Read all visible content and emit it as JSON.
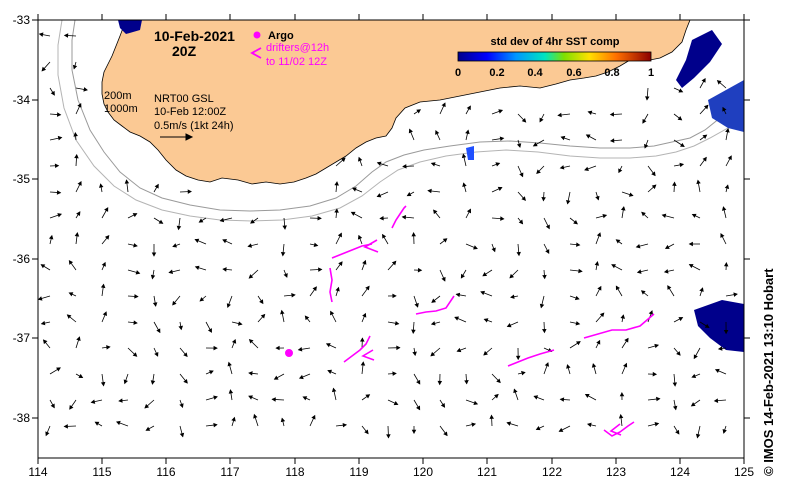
{
  "header": {
    "date": "10-Feb-2021",
    "hour": "20Z",
    "argo_label": "Argo",
    "drifters_line1": "drifters@12h",
    "drifters_line2": "to 11/02 12Z",
    "depth_200": "200m",
    "depth_1000": "1000m",
    "product": "NRT00 GSL",
    "product_time": "10-Feb 12:00Z",
    "scale_label": "0.5m/s (1kt 24h)"
  },
  "colorbar": {
    "title": "std dev of 4hr SST comp",
    "ticks": [
      "0",
      "0.2",
      "0.4",
      "0.6",
      "0.8",
      "1"
    ]
  },
  "axes": {
    "x_ticks": [
      "114",
      "115",
      "116",
      "117",
      "118",
      "119",
      "120",
      "121",
      "122",
      "123",
      "124",
      "125"
    ],
    "y_ticks": [
      "-33",
      "-34",
      "-35",
      "-36",
      "-37",
      "-38"
    ]
  },
  "credit": "© IMOS 14-Feb-2021 13:10 Hobart",
  "colors": {
    "land": "#fbc994",
    "drifter": "#ff00ff",
    "isobath": "#9a9a9a",
    "sst_dark": "#00008b",
    "sst_mid": "#1f6fff"
  },
  "icons": {
    "argo_marker": "argo-float-icon",
    "drifter_marker": "drifter-chevron-icon"
  }
}
